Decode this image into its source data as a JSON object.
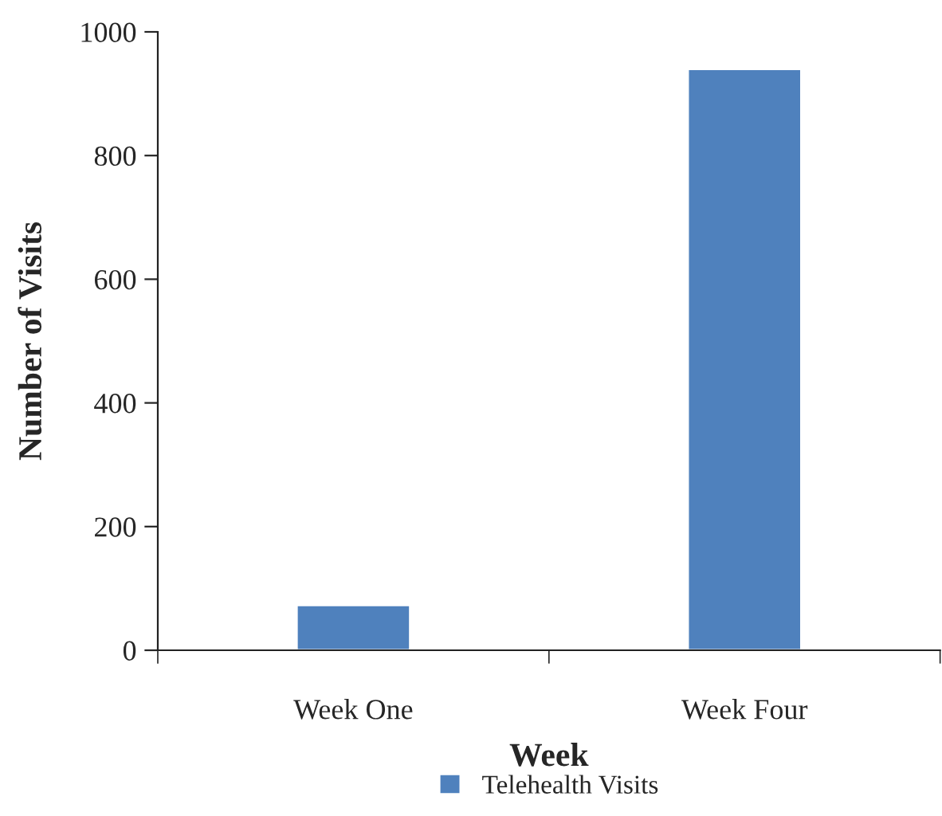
{
  "chart_data": {
    "type": "bar",
    "xlabel": "Week",
    "ylabel": "Number of Visits",
    "categories": [
      "Week One",
      "Week Four"
    ],
    "series": [
      {
        "name": "Telehealth Visits",
        "color": "#4f81bd",
        "values": [
          73,
          940
        ]
      }
    ],
    "ylim": [
      0,
      1000
    ],
    "yticks": [
      0,
      200,
      400,
      600,
      800,
      1000
    ],
    "grid": false,
    "legend": "bottom"
  }
}
